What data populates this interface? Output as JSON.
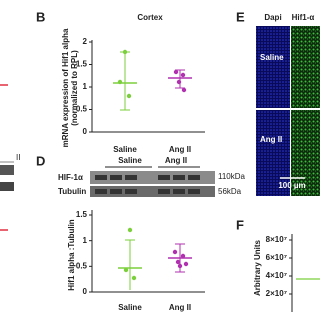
{
  "left_fragment": {
    "label": "II"
  },
  "panel_b": {
    "letter": "B",
    "title": "Cortex",
    "y_label": "mRNA expression of Hif1 alpha",
    "y_label_2": "(normalized to RPL)",
    "yticks": [
      "2",
      "1.5",
      "1",
      "0.5",
      "0"
    ],
    "groups": [
      "Saline",
      "Ang II"
    ]
  },
  "panel_d": {
    "letter": "D",
    "blot_groups": [
      "Saline",
      "Ang II"
    ],
    "blot_rows": [
      "HIF-1α",
      "Tubulin"
    ],
    "sizes": [
      "110kDa",
      "56kDa"
    ],
    "y_label": "Hif1 alpha :Tubulin",
    "yticks": [
      "1.5",
      "1",
      "0.5",
      "0"
    ],
    "groups": [
      "Saline",
      "Ang II"
    ]
  },
  "panel_e": {
    "letter": "E",
    "columns": [
      "Dapi",
      "Hif1-α"
    ],
    "rows": [
      "Saline",
      "Ang II"
    ],
    "scale_bar": "100 µm"
  },
  "panel_f": {
    "letter": "F",
    "y_label": "Arbitrary Units",
    "yticks": [
      "8×10⁷",
      "6×10⁷",
      "4×10⁷",
      "2×10⁷"
    ]
  }
}
